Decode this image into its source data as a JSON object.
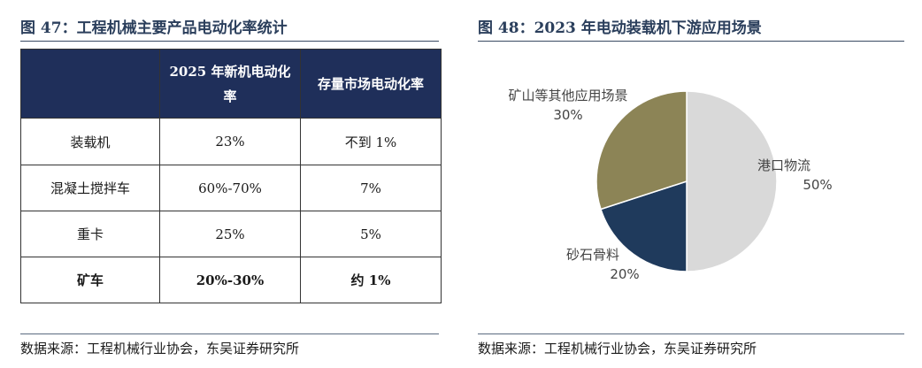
{
  "left_figure": {
    "title": "图 47：工程机械主要产品电动化率统计",
    "source": "数据来源：工程机械行业协会，东吴证券研究所"
  },
  "right_figure": {
    "title": "图 48：2023 年电动装载机下游应用场景",
    "source": "数据来源：工程机械行业协会，东吴证券研究所"
  },
  "chart_data": [
    {
      "type": "table",
      "columns": [
        "",
        "2025 年新机电动化率",
        "存量市场电动化率"
      ],
      "rows": [
        [
          "装载机",
          "23%",
          "不到 1%"
        ],
        [
          "混凝土搅拌车",
          "60%-70%",
          "7%"
        ],
        [
          "重卡",
          "25%",
          "5%"
        ],
        [
          "矿车",
          "20%-30%",
          "约 1%"
        ]
      ]
    },
    {
      "type": "pie",
      "labels": [
        "港口物流",
        "砂石骨料",
        "矿山等其他应用场景"
      ],
      "values": [
        50,
        20,
        30
      ],
      "value_labels": [
        "50%",
        "20%",
        "30%"
      ],
      "colors": [
        "#d9d9d9",
        "#1f3a5c",
        "#8c8456"
      ]
    }
  ]
}
